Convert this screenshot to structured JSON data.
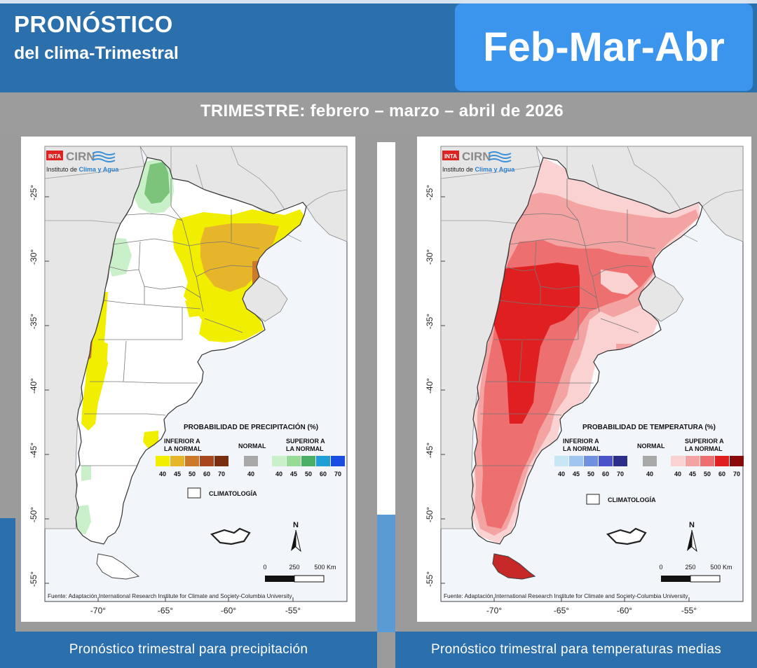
{
  "header": {
    "title_line1": "PRONÓSTICO",
    "title_line2": "del clima-Trimestral",
    "season_badge": "Feb-Mar-Abr",
    "subtitle": "TRIMESTRE:  febrero – marzo – abril de 2026"
  },
  "maps": {
    "logo": {
      "inta": "INTA",
      "cirn": "CIRN",
      "institute_prefix": "Instituto de ",
      "institute_name": "Clima y Agua"
    },
    "lat_ticks": [
      "-25°",
      "-30°",
      "-35°",
      "-40°",
      "-45°",
      "-50°",
      "-55°"
    ],
    "lon_ticks": [
      "-70°",
      "-65°",
      "-60°",
      "-55°"
    ],
    "source": "Fuente: Adaptación International Research Institute for Climate and Society-Columbia University",
    "scale": {
      "zero": "0",
      "mid": "250",
      "max": "500 Km"
    },
    "north": "N",
    "climatology": "CLIMATOLOGÍA",
    "normal_label": "NORMAL",
    "precipitation": {
      "legend_title": "PROBABILIDAD DE PRECIPITACIÓN (%)",
      "lower_label": [
        "INFERIOR A",
        "LA NORMAL"
      ],
      "upper_label": [
        "SUPERIOR A",
        "LA NORMAL"
      ],
      "lower_colors": [
        "#f2ee00",
        "#e6b52a",
        "#cc7a2a",
        "#a8461e",
        "#7a2e10"
      ],
      "normal_color": "#a8a8a8",
      "upper_colors": [
        "#c9f0c9",
        "#96dc96",
        "#4caf68",
        "#1f9fd6",
        "#1a4ee0"
      ],
      "lower_values": [
        "40",
        "45",
        "50",
        "60",
        "70"
      ],
      "normal_value": "40",
      "upper_values": [
        "40",
        "45",
        "50",
        "60",
        "70"
      ],
      "caption": "Pronóstico trimestral para precipitación"
    },
    "temperature": {
      "legend_title": "PROBABILIDAD DE TEMPERATURA (%)",
      "lower_label": [
        "INFERIOR A",
        "LA NORMAL"
      ],
      "upper_label": [
        "SUPERIOR A",
        "LA NORMAL"
      ],
      "lower_colors": [
        "#c7e7f7",
        "#9fc5f0",
        "#6f8fe0",
        "#4a54c8",
        "#2b2f8a"
      ],
      "normal_color": "#a8a8a8",
      "upper_colors": [
        "#fbd2d2",
        "#f4a3a3",
        "#ee6f6f",
        "#e02020",
        "#8a0a0a"
      ],
      "lower_values": [
        "40",
        "45",
        "50",
        "60",
        "70"
      ],
      "normal_value": "40",
      "upper_values": [
        "40",
        "45",
        "50",
        "60",
        "70"
      ],
      "caption": "Pronóstico trimestral para temperaturas medias"
    }
  }
}
